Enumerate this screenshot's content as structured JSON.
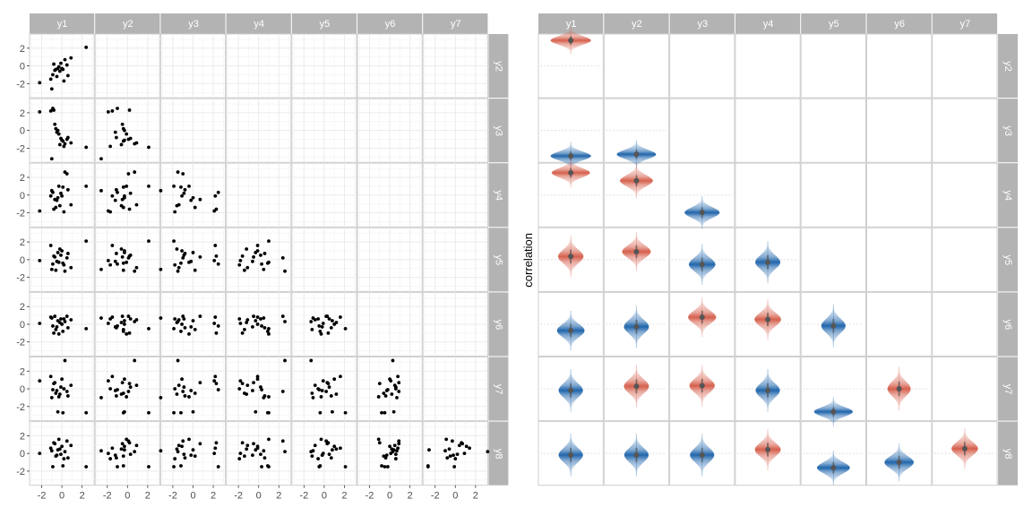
{
  "chart_data": [
    {
      "type": "scatter",
      "panel": "left",
      "col_labels": [
        "y1",
        "y2",
        "y3",
        "y4",
        "y5",
        "y6",
        "y7"
      ],
      "row_labels": [
        "y2",
        "y3",
        "y4",
        "y5",
        "y6",
        "y7",
        "y8"
      ],
      "x_ticks": [
        -2,
        0,
        2
      ],
      "y_ticks": [
        -2,
        0,
        2
      ],
      "xlim": [
        -3.2,
        3.2
      ],
      "ylim": [
        -3.6,
        3.6
      ],
      "grid": true,
      "variables": {
        "y1": [
          -2.2,
          -1.1,
          -0.9,
          -0.7,
          -0.6,
          -0.4,
          -0.3,
          -0.1,
          0.0,
          0.1,
          0.3,
          0.5,
          0.6,
          0.9,
          2.4,
          -1.0,
          -0.8,
          -0.5,
          -0.2,
          0.2
        ],
        "y2": [
          -1.9,
          -1.5,
          -1.0,
          -0.5,
          -0.4,
          -0.3,
          -0.1,
          0.3,
          -0.3,
          -0.4,
          0.7,
          0.1,
          -1.1,
          0.9,
          2.1,
          -2.6,
          0.2,
          -1.2,
          -0.6,
          -1.7
        ],
        "y3": [
          2.1,
          2.2,
          2.5,
          0.7,
          0.2,
          0.0,
          -0.4,
          -0.9,
          -1.1,
          -1.2,
          -1.5,
          -1.0,
          -0.8,
          -1.4,
          -1.9,
          -3.2,
          2.3,
          -0.2,
          -1.6,
          -1.8
        ],
        "y4": [
          -1.8,
          -0.1,
          0.3,
          -0.5,
          -1.4,
          -0.3,
          1.0,
          0.2,
          -0.1,
          0.9,
          2.6,
          2.4,
          0.6,
          -1.1,
          1.0,
          0.5,
          -1.6,
          -0.6,
          -1.2,
          -1.9
        ],
        "y5": [
          -0.1,
          1.6,
          -0.5,
          0.3,
          -1.2,
          0.8,
          -0.3,
          0.5,
          1.0,
          -0.4,
          -1.3,
          0.2,
          0.7,
          -0.9,
          2.1,
          -1.1,
          0.4,
          -0.2,
          1.2,
          -0.6
        ],
        "y6": [
          0.1,
          0.8,
          -0.2,
          0.9,
          -0.6,
          0.4,
          -1.1,
          0.6,
          0.0,
          -0.8,
          0.3,
          0.9,
          -0.4,
          0.5,
          -0.5,
          0.7,
          -1.0,
          -0.3,
          0.2,
          0.6
        ],
        "y7": [
          0.9,
          1.4,
          -0.1,
          0.7,
          -0.5,
          -2.6,
          -0.9,
          0.2,
          1.1,
          -2.7,
          3.2,
          -0.3,
          -0.8,
          0.4,
          -2.7,
          -1.0,
          0.6,
          -0.2,
          -0.6,
          0.0
        ],
        "y8": [
          0.0,
          0.6,
          -1.5,
          1.1,
          -0.3,
          0.4,
          1.6,
          -0.1,
          0.8,
          -1.4,
          0.2,
          1.4,
          -0.5,
          0.9,
          -1.5,
          0.3,
          1.2,
          -0.2,
          0.5,
          -0.6
        ]
      }
    },
    {
      "type": "violin",
      "panel": "right",
      "ylabel": "correlation",
      "col_labels": [
        "y1",
        "y2",
        "y3",
        "y4",
        "y5",
        "y6",
        "y7"
      ],
      "row_labels": [
        "y2",
        "y3",
        "y4",
        "y5",
        "y6",
        "y7",
        "y8"
      ],
      "ylim": [
        -1,
        1
      ],
      "colors": {
        "positive": "#d6604d",
        "negative": "#2166ac",
        "point": "#555555",
        "reference": "#e6e6e6"
      },
      "cells": [
        {
          "row": 0,
          "col": 0,
          "r": 0.8
        },
        {
          "row": 1,
          "col": 0,
          "r": -0.8
        },
        {
          "row": 1,
          "col": 1,
          "r": -0.75
        },
        {
          "row": 2,
          "col": 0,
          "r": 0.7
        },
        {
          "row": 2,
          "col": 1,
          "r": 0.45
        },
        {
          "row": 2,
          "col": 2,
          "r": -0.55
        },
        {
          "row": 3,
          "col": 0,
          "r": 0.1
        },
        {
          "row": 3,
          "col": 1,
          "r": 0.25
        },
        {
          "row": 3,
          "col": 2,
          "r": -0.15
        },
        {
          "row": 3,
          "col": 3,
          "r": -0.08
        },
        {
          "row": 4,
          "col": 0,
          "r": -0.2
        },
        {
          "row": 4,
          "col": 1,
          "r": -0.08
        },
        {
          "row": 4,
          "col": 2,
          "r": 0.22
        },
        {
          "row": 4,
          "col": 3,
          "r": 0.15
        },
        {
          "row": 4,
          "col": 4,
          "r": -0.05
        },
        {
          "row": 5,
          "col": 0,
          "r": -0.05
        },
        {
          "row": 5,
          "col": 1,
          "r": 0.08
        },
        {
          "row": 5,
          "col": 2,
          "r": 0.1
        },
        {
          "row": 5,
          "col": 3,
          "r": -0.05
        },
        {
          "row": 5,
          "col": 4,
          "r": -0.72
        },
        {
          "row": 5,
          "col": 5,
          "r": 0.0
        },
        {
          "row": 6,
          "col": 0,
          "r": -0.05
        },
        {
          "row": 6,
          "col": 1,
          "r": -0.05
        },
        {
          "row": 6,
          "col": 2,
          "r": -0.05
        },
        {
          "row": 6,
          "col": 3,
          "r": 0.12
        },
        {
          "row": 6,
          "col": 4,
          "r": -0.45
        },
        {
          "row": 6,
          "col": 5,
          "r": -0.28
        },
        {
          "row": 6,
          "col": 6,
          "r": 0.15
        }
      ]
    }
  ]
}
